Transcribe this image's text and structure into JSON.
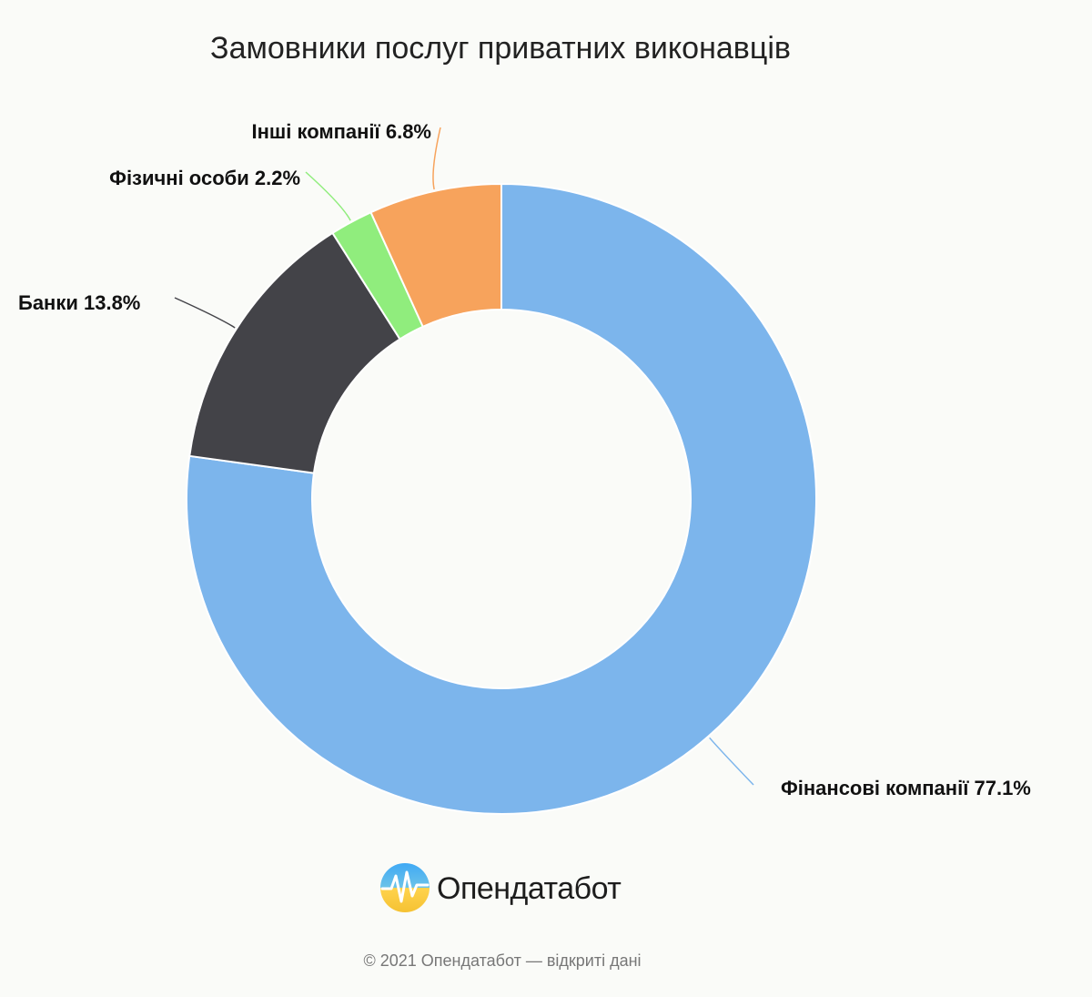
{
  "chart_data": {
    "type": "pie",
    "title": "Замовники послуг приватних виконавців",
    "unit": "%",
    "slices": [
      {
        "label": "Фінансові компанії",
        "value": 77.1,
        "display": "Фінансові компанії 77.1%",
        "color": "#7cb5ec"
      },
      {
        "label": "Банки",
        "value": 13.8,
        "display": "Банки 13.8%",
        "color": "#434348"
      },
      {
        "label": "Фізичні особи",
        "value": 2.2,
        "display": "Фізичні особи 2.2%",
        "color": "#90ed7d"
      },
      {
        "label": "Інші компанії",
        "value": 6.8,
        "display": "Інші компанії 6.8%",
        "color": "#f7a35c"
      }
    ],
    "legend": "none"
  },
  "branding": {
    "logo_text": "Опендатабот",
    "logo_icon": "opendatabot-logo-icon",
    "copyright": "© 2021 Опендатабот — відкриті дані"
  }
}
